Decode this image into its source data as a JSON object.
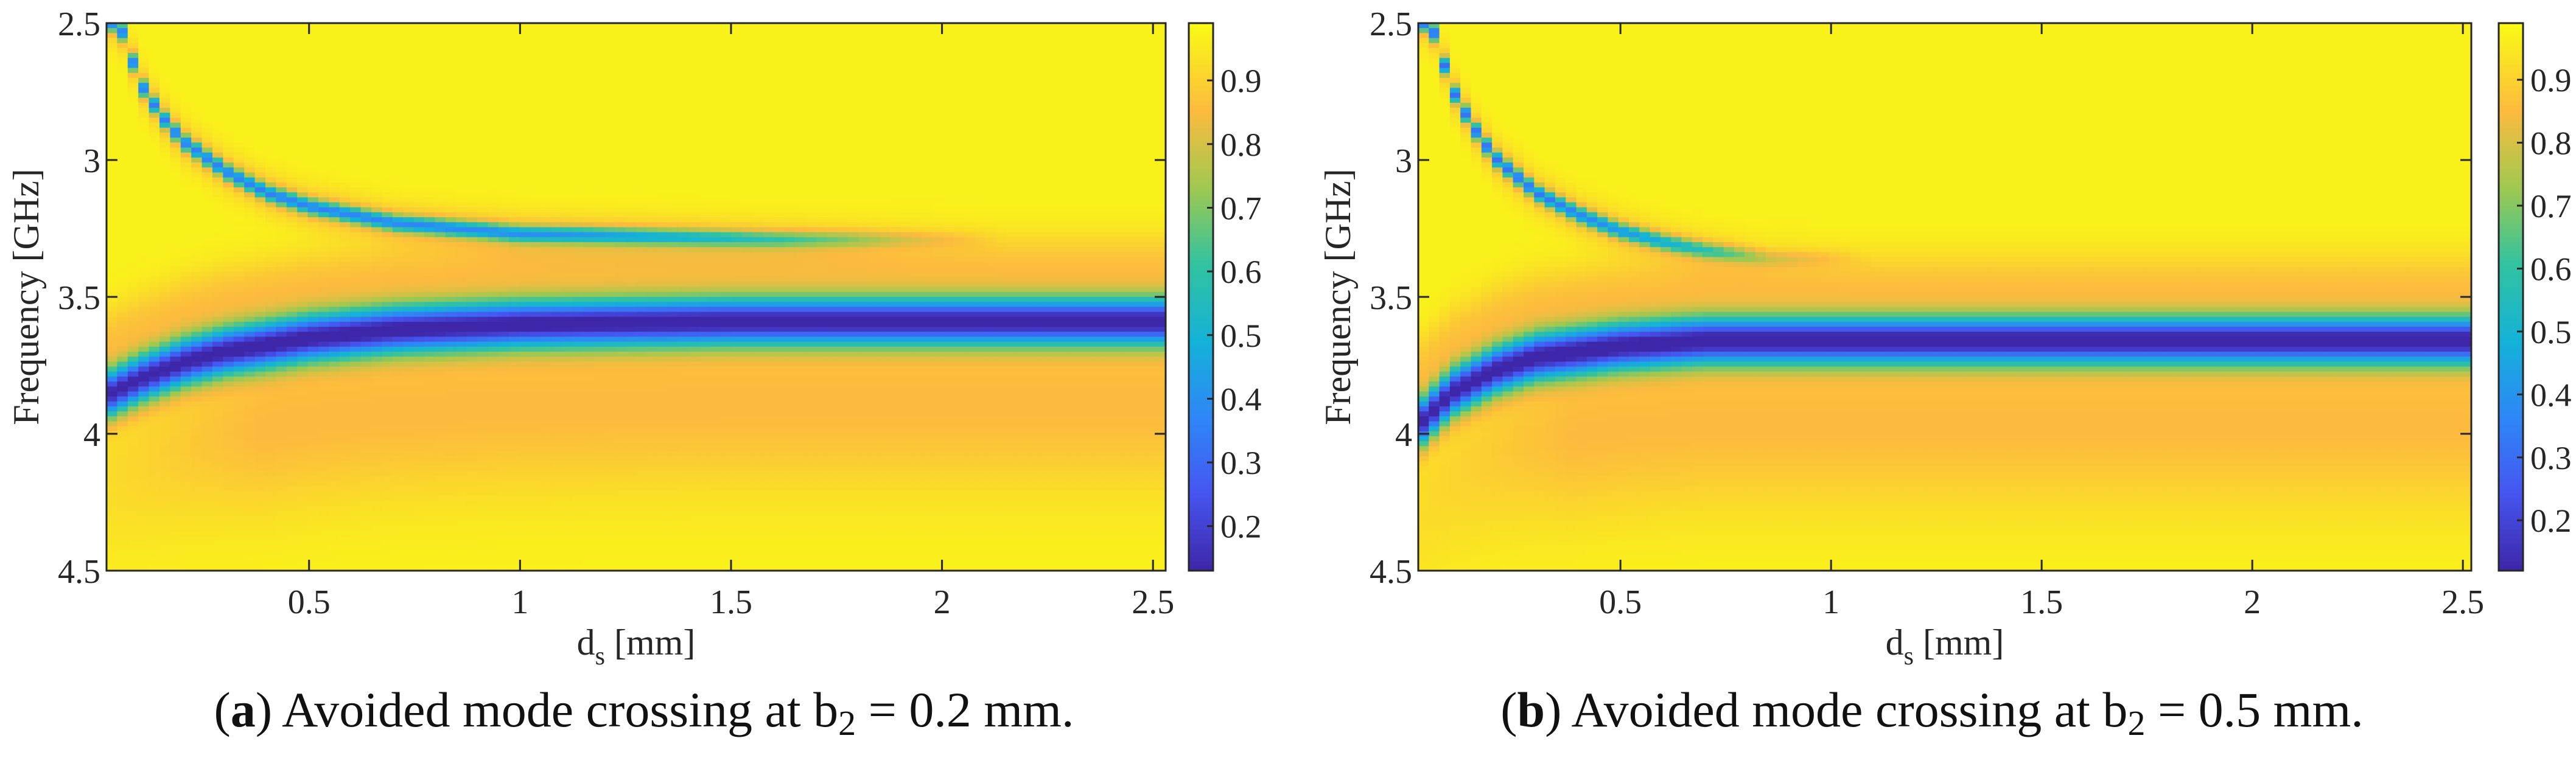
{
  "chart_data": [
    {
      "type": "heatmap",
      "panel_tag": "a",
      "caption_text": "Avoided mode crossing at b",
      "caption_sub": "2",
      "caption_tail": " = 0.2 mm.",
      "xlabel_main": "d",
      "xlabel_sub": "s",
      "xlabel_tail": " [mm]",
      "ylabel": "Frequency [GHz]",
      "xlim": [
        0.02,
        2.53
      ],
      "ylim": [
        2.5,
        4.5
      ],
      "y_reversed": true,
      "x_ticks": [
        0.5,
        1,
        1.5,
        2,
        2.5
      ],
      "x_tick_labels": [
        "0.5",
        "1",
        "1.5",
        "2",
        "2.5"
      ],
      "y_ticks": [
        2.5,
        3,
        3.5,
        4,
        4.5
      ],
      "y_tick_labels": [
        "2.5",
        "3",
        "3.5",
        "4",
        "4.5"
      ],
      "colorbar_range": [
        0.13,
        0.99
      ],
      "colorbar_ticks": [
        0.2,
        0.3,
        0.4,
        0.5,
        0.6,
        0.7,
        0.8,
        0.9
      ],
      "colorbar_tick_labels": [
        "0.2",
        "0.3",
        "0.4",
        "0.5",
        "0.6",
        "0.7",
        "0.8",
        "0.9"
      ],
      "colormap": "parula",
      "upper_branch": {
        "x": [
          0.05,
          0.1,
          0.15,
          0.2,
          0.3,
          0.4,
          0.5,
          0.7,
          1.0,
          1.3,
          1.6,
          1.9
        ],
        "frequency": [
          2.5,
          2.72,
          2.84,
          2.93,
          3.04,
          3.12,
          3.17,
          3.23,
          3.27,
          3.28,
          3.29,
          3.29
        ],
        "min_value": 0.45
      },
      "lower_branch": {
        "x": [
          0.02,
          0.1,
          0.2,
          0.3,
          0.5,
          0.7,
          1.0,
          1.5,
          2.0,
          2.53
        ],
        "frequency": [
          3.86,
          3.8,
          3.74,
          3.7,
          3.65,
          3.62,
          3.6,
          3.59,
          3.59,
          3.59
        ],
        "min_value": 0.15
      }
    },
    {
      "type": "heatmap",
      "panel_tag": "b",
      "caption_text": "Avoided mode crossing at b",
      "caption_sub": "2",
      "caption_tail": " = 0.5 mm.",
      "xlabel_main": "d",
      "xlabel_sub": "s",
      "xlabel_tail": " [mm]",
      "ylabel": "Frequency [GHz]",
      "xlim": [
        0.02,
        2.52
      ],
      "ylim": [
        2.5,
        4.5
      ],
      "y_reversed": true,
      "x_ticks": [
        0.5,
        1,
        1.5,
        2,
        2.5
      ],
      "x_tick_labels": [
        "0.5",
        "1",
        "1.5",
        "2",
        "2.5"
      ],
      "y_ticks": [
        2.5,
        3,
        3.5,
        4,
        4.5
      ],
      "y_tick_labels": [
        "2.5",
        "3",
        "3.5",
        "4",
        "4.5"
      ],
      "colorbar_range": [
        0.12,
        0.99
      ],
      "colorbar_ticks": [
        0.2,
        0.3,
        0.4,
        0.5,
        0.6,
        0.7,
        0.8,
        0.9
      ],
      "colorbar_tick_labels": [
        "0.2",
        "0.3",
        "0.4",
        "0.5",
        "0.6",
        "0.7",
        "0.8",
        "0.9"
      ],
      "colormap": "parula",
      "upper_branch": {
        "x": [
          0.05,
          0.1,
          0.15,
          0.2,
          0.3,
          0.4,
          0.5,
          0.6,
          0.7,
          0.8,
          0.85
        ],
        "frequency": [
          2.5,
          2.74,
          2.88,
          2.99,
          3.12,
          3.2,
          3.26,
          3.3,
          3.33,
          3.35,
          3.36
        ],
        "min_value": 0.4
      },
      "lower_branch": {
        "x": [
          0.02,
          0.1,
          0.2,
          0.3,
          0.5,
          0.7,
          1.0,
          1.5,
          2.0,
          2.52
        ],
        "frequency": [
          3.97,
          3.85,
          3.77,
          3.72,
          3.68,
          3.66,
          3.66,
          3.66,
          3.66,
          3.66
        ],
        "min_value": 0.13
      }
    }
  ]
}
